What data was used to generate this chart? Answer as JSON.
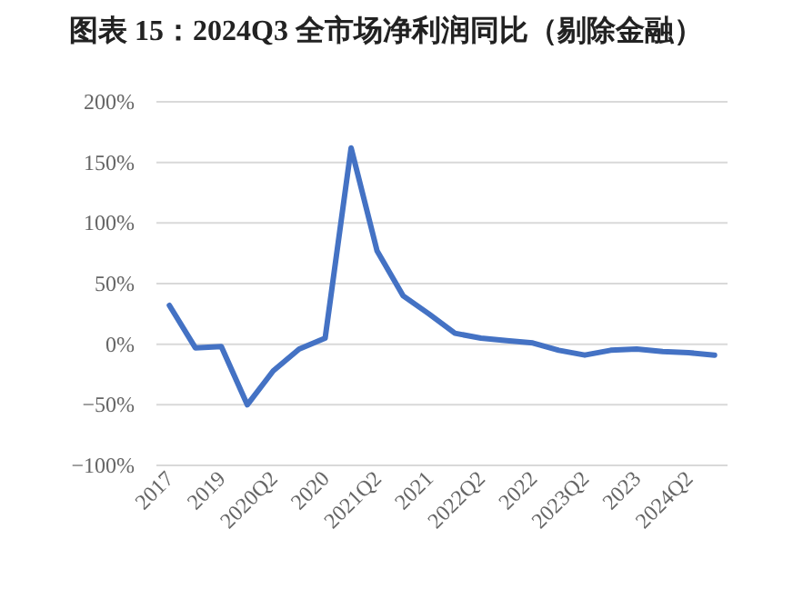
{
  "chart_data": {
    "type": "line",
    "title": "图表 15：2024Q3 全市场净利润同比（剔除金融）",
    "categories": [
      "2017",
      null,
      "2019",
      null,
      "2020Q2",
      null,
      "2020",
      null,
      "2021Q2",
      null,
      "2021",
      null,
      "2022Q2",
      null,
      "2022",
      null,
      "2023Q2",
      null,
      "2023",
      null,
      "2024Q2",
      null
    ],
    "values": [
      32,
      -3,
      -2,
      -50,
      -22,
      -4,
      5,
      162,
      77,
      40,
      25,
      9,
      5,
      3,
      1,
      -5,
      -9,
      -5,
      -4,
      -6,
      -7,
      -9
    ],
    "color": "#4472c4",
    "ylim": [
      -100,
      200
    ],
    "yticks": [
      {
        "value": -100,
        "label": "−100%"
      },
      {
        "value": -50,
        "label": "−50%"
      },
      {
        "value": 0,
        "label": "0%"
      },
      {
        "value": 50,
        "label": "50%"
      },
      {
        "value": 100,
        "label": "100%"
      },
      {
        "value": 150,
        "label": "150%"
      },
      {
        "value": 200,
        "label": "200%"
      }
    ],
    "grid": "y",
    "marker": "none",
    "line_style": "solid"
  }
}
